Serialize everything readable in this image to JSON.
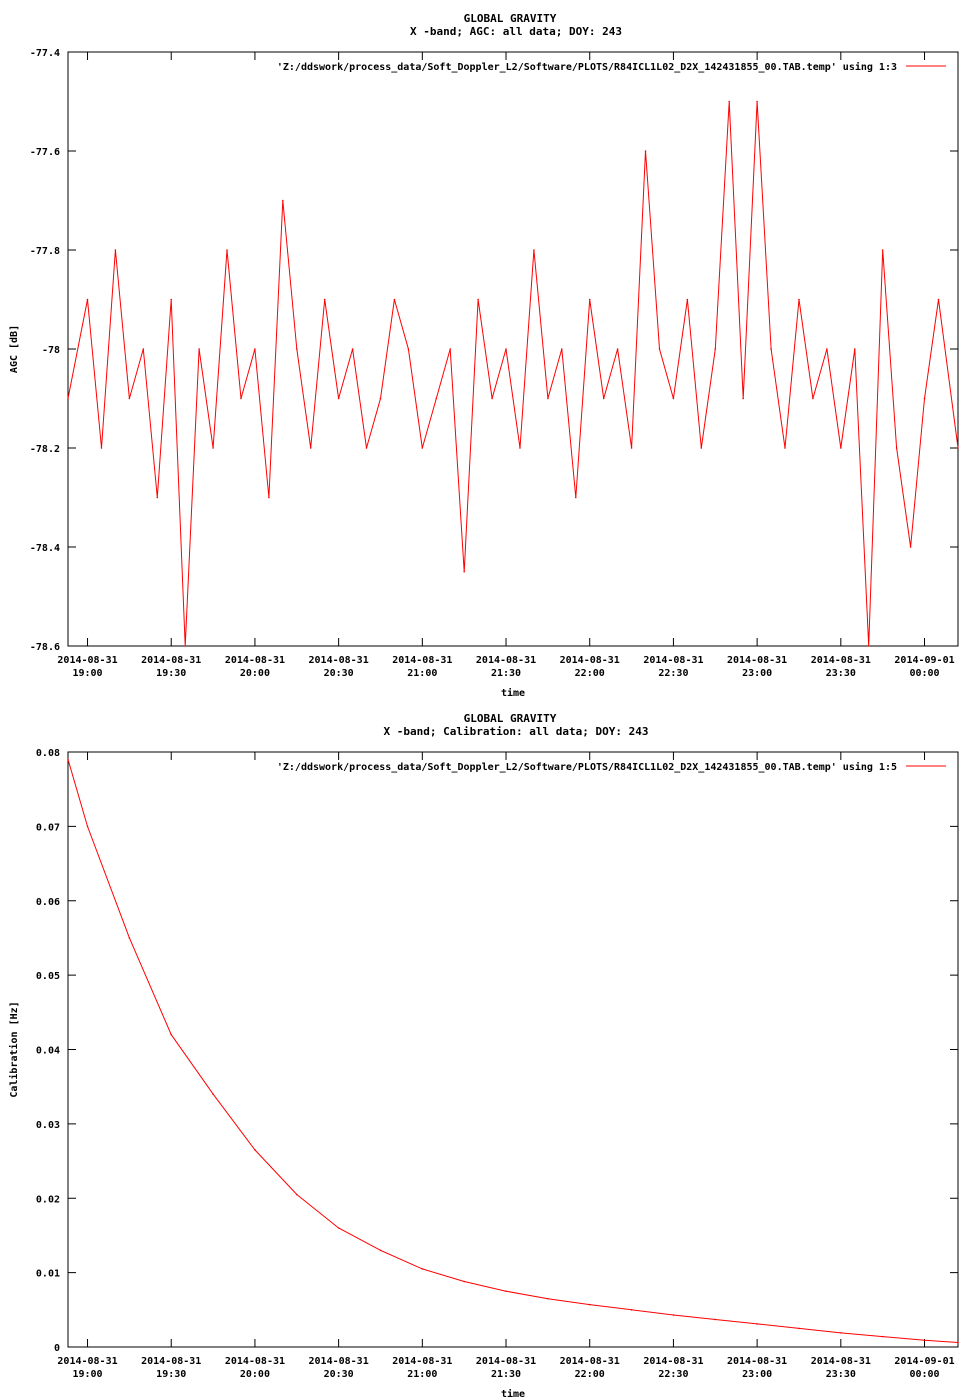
{
  "colors": {
    "series": "#ff0000",
    "axis": "#000000",
    "background": "#ffffff"
  },
  "chart_data": [
    {
      "type": "line",
      "title": "GLOBAL GRAVITY",
      "subtitle": "X -band; AGC: all data; DOY: 243",
      "xlabel": "time",
      "ylabel": "AGC [dB]",
      "ylim": [
        -78.6,
        -77.4
      ],
      "yticks": [
        -77.4,
        -77.6,
        -77.8,
        -78,
        -78.2,
        -78.4,
        -78.6
      ],
      "ytick_labels": [
        "-77.4",
        "-77.6",
        "-77.8",
        "-78",
        "-78.2",
        "-78.4",
        "-78.6"
      ],
      "xlim": [
        "2014-08-31 18:53",
        "2014-09-01 00:12"
      ],
      "xtick_labels": [
        [
          "2014-08-31",
          "19:00"
        ],
        [
          "2014-08-31",
          "19:30"
        ],
        [
          "2014-08-31",
          "20:00"
        ],
        [
          "2014-08-31",
          "20:30"
        ],
        [
          "2014-08-31",
          "21:00"
        ],
        [
          "2014-08-31",
          "21:30"
        ],
        [
          "2014-08-31",
          "22:00"
        ],
        [
          "2014-08-31",
          "22:30"
        ],
        [
          "2014-08-31",
          "23:00"
        ],
        [
          "2014-08-31",
          "23:30"
        ],
        [
          "2014-09-01",
          "00:00"
        ]
      ],
      "grid": false,
      "legend_position": "top-right",
      "series": [
        {
          "name": "'Z:/ddswork/process_data/Soft_Doppler_L2/Software/PLOTS/R84ICL1L02_D2X_142431855_00.TAB.temp' using 1:3",
          "color": "#ff0000",
          "x": [
            "18:53",
            "19:00",
            "19:05",
            "19:10",
            "19:15",
            "19:20",
            "19:25",
            "19:30",
            "19:35",
            "19:40",
            "19:45",
            "19:50",
            "19:55",
            "20:00",
            "20:05",
            "20:10",
            "20:15",
            "20:20",
            "20:25",
            "20:30",
            "20:35",
            "20:40",
            "20:45",
            "20:50",
            "20:55",
            "21:00",
            "21:05",
            "21:10",
            "21:15",
            "21:20",
            "21:25",
            "21:30",
            "21:35",
            "21:40",
            "21:45",
            "21:50",
            "21:55",
            "22:00",
            "22:05",
            "22:10",
            "22:15",
            "22:20",
            "22:25",
            "22:30",
            "22:35",
            "22:40",
            "22:45",
            "22:50",
            "22:55",
            "23:00",
            "23:05",
            "23:10",
            "23:15",
            "23:20",
            "23:25",
            "23:30",
            "23:35",
            "23:40",
            "23:45",
            "23:50",
            "23:55",
            "00:00",
            "00:05",
            "00:12"
          ],
          "y": [
            -78.1,
            -77.9,
            -78.2,
            -77.8,
            -78.1,
            -78.0,
            -78.3,
            -77.9,
            -78.6,
            -78.0,
            -78.2,
            -77.8,
            -78.1,
            -78.0,
            -78.3,
            -77.7,
            -78.0,
            -78.2,
            -77.9,
            -78.1,
            -78.0,
            -78.2,
            -78.1,
            -77.9,
            -78.0,
            -78.2,
            -78.1,
            -78.0,
            -78.45,
            -77.9,
            -78.1,
            -78.0,
            -78.2,
            -77.8,
            -78.1,
            -78.0,
            -78.3,
            -77.9,
            -78.1,
            -78.0,
            -78.2,
            -77.6,
            -78.0,
            -78.1,
            -77.9,
            -78.2,
            -78.0,
            -77.5,
            -78.1,
            -77.5,
            -78.0,
            -78.2,
            -77.9,
            -78.1,
            -78.0,
            -78.2,
            -78.0,
            -78.6,
            -77.8,
            -78.2,
            -78.4,
            -78.1,
            -77.9,
            -78.2
          ]
        }
      ]
    },
    {
      "type": "line",
      "title": "GLOBAL GRAVITY",
      "subtitle": "X -band; Calibration: all data; DOY: 243",
      "xlabel": "time",
      "ylabel": "Calibration [Hz]",
      "ylim": [
        0,
        0.08
      ],
      "yticks": [
        0,
        0.01,
        0.02,
        0.03,
        0.04,
        0.05,
        0.06,
        0.07,
        0.08
      ],
      "ytick_labels": [
        "0",
        "0.01",
        "0.02",
        "0.03",
        "0.04",
        "0.05",
        "0.06",
        "0.07",
        "0.08"
      ],
      "xlim": [
        "2014-08-31 18:53",
        "2014-09-01 00:12"
      ],
      "xtick_labels": [
        [
          "2014-08-31",
          "19:00"
        ],
        [
          "2014-08-31",
          "19:30"
        ],
        [
          "2014-08-31",
          "20:00"
        ],
        [
          "2014-08-31",
          "20:30"
        ],
        [
          "2014-08-31",
          "21:00"
        ],
        [
          "2014-08-31",
          "21:30"
        ],
        [
          "2014-08-31",
          "22:00"
        ],
        [
          "2014-08-31",
          "22:30"
        ],
        [
          "2014-08-31",
          "23:00"
        ],
        [
          "2014-08-31",
          "23:30"
        ],
        [
          "2014-09-01",
          "00:00"
        ]
      ],
      "grid": false,
      "legend_position": "top-right",
      "series": [
        {
          "name": "'Z:/ddswork/process_data/Soft_Doppler_L2/Software/PLOTS/R84ICL1L02_D2X_142431855_00.TAB.temp' using 1:5",
          "color": "#ff0000",
          "x": [
            "18:53",
            "19:00",
            "19:15",
            "19:30",
            "19:45",
            "20:00",
            "20:15",
            "20:30",
            "20:45",
            "21:00",
            "21:15",
            "21:30",
            "21:45",
            "22:00",
            "22:15",
            "22:30",
            "22:45",
            "23:00",
            "23:15",
            "23:30",
            "23:45",
            "00:00",
            "00:12"
          ],
          "y": [
            0.079,
            0.07,
            0.055,
            0.042,
            0.034,
            0.0265,
            0.0205,
            0.016,
            0.013,
            0.0105,
            0.0088,
            0.0075,
            0.0065,
            0.0057,
            0.005,
            0.0043,
            0.0037,
            0.0031,
            0.0025,
            0.0019,
            0.0014,
            0.0009,
            0.0006
          ]
        }
      ]
    }
  ]
}
